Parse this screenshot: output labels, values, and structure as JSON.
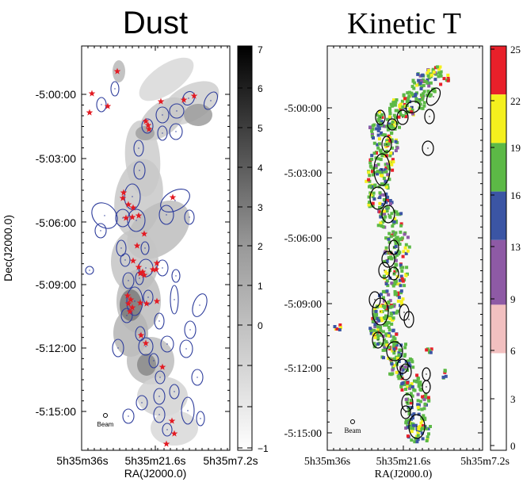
{
  "chart_data": [
    {
      "type": "heatmap",
      "title": "Dust",
      "xlabel": "RA(J2000.0)",
      "ylabel": "Dec(J2000.0)",
      "x_ticks": [
        "5h35m36s",
        "5h35m21.6s",
        "5h35m7.2s"
      ],
      "y_ticks": [
        "-5:00:00",
        "-5:03:00",
        "-5:06:00",
        "-5:09:00",
        "-5:12:00",
        "-5:15:00"
      ],
      "colorbar": {
        "min": -1,
        "max": 7,
        "ticks": [
          "7",
          "6",
          "5",
          "4",
          "3",
          "2",
          "1",
          "0",
          "−1"
        ]
      },
      "annotation": "Beam",
      "markers": {
        "cores": "blue ellipses",
        "sources": "red stars"
      }
    },
    {
      "type": "heatmap",
      "title": "Kinetic T",
      "xlabel": "RA(J2000.0)",
      "x_ticks": [
        "5h35m36s",
        "5h35m21.6s",
        "5h35m7.2s"
      ],
      "y_ticks": [
        "-5:00:00",
        "-5:03:00",
        "-5:06:00",
        "-5:09:00",
        "-5:12:00",
        "-5:15:00"
      ],
      "colorbar": {
        "ticks": [
          "25",
          "22",
          "19",
          "16",
          "13",
          "9",
          "6",
          "3",
          "0"
        ],
        "bands": [
          {
            "from": 22,
            "to": 25,
            "color": "#e8202a"
          },
          {
            "from": 19,
            "to": 22,
            "color": "#f4f01e"
          },
          {
            "from": 16,
            "to": 19,
            "color": "#5cb946"
          },
          {
            "from": 13,
            "to": 16,
            "color": "#3b55a4"
          },
          {
            "from": 9,
            "to": 13,
            "color": "#8e5aa5"
          },
          {
            "from": 6,
            "to": 9,
            "color": "#f2c0c0"
          },
          {
            "from": 3,
            "to": 6,
            "color": "#ffffff"
          }
        ]
      },
      "annotation": "Beam",
      "markers": {
        "cores": "black ellipses"
      }
    }
  ]
}
